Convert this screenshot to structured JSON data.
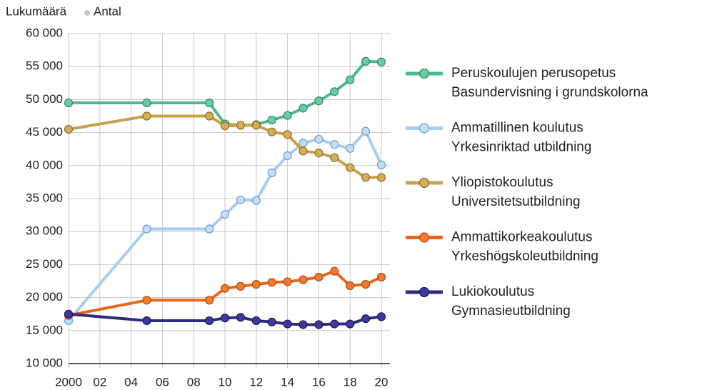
{
  "chart_data": {
    "type": "line",
    "ylabel": "Lukumäärä",
    "ylabel_sv": "Antal",
    "x": [
      2000,
      2005,
      2009,
      2010,
      2011,
      2012,
      2013,
      2014,
      2015,
      2016,
      2017,
      2018,
      2019,
      2020
    ],
    "xlim": [
      2000,
      2020
    ],
    "xticks": [
      2000,
      {
        "value": 2002,
        "label": "02"
      },
      {
        "value": 2004,
        "label": "04"
      },
      {
        "value": 2006,
        "label": "06"
      },
      {
        "value": 2008,
        "label": "08"
      },
      {
        "value": 2010,
        "label": "10"
      },
      {
        "value": 2012,
        "label": "12"
      },
      {
        "value": 2014,
        "label": "14"
      },
      {
        "value": 2016,
        "label": "16"
      },
      {
        "value": 2018,
        "label": "18"
      },
      {
        "value": 2020,
        "label": "20"
      }
    ],
    "ylim": [
      10000,
      60000
    ],
    "yticks": [
      {
        "value": 10000,
        "label": "10 000"
      },
      {
        "value": 15000,
        "label": "15 000"
      },
      {
        "value": 20000,
        "label": "20 000"
      },
      {
        "value": 25000,
        "label": "25 000"
      },
      {
        "value": 30000,
        "label": "30 000"
      },
      {
        "value": 35000,
        "label": "35 000"
      },
      {
        "value": 40000,
        "label": "40 000"
      },
      {
        "value": 45000,
        "label": "45 000"
      },
      {
        "value": 50000,
        "label": "50 000"
      },
      {
        "value": 55000,
        "label": "55 000"
      },
      {
        "value": 60000,
        "label": "60 000"
      }
    ],
    "grid": true,
    "legend": "right",
    "series": [
      {
        "name": "Peruskoulujen perusopetus",
        "name_sv": "Basundervisning i grundskolorna",
        "color": "#4fb88e",
        "marker_fill": "#6ccba3",
        "marker_stroke": "#2e8a66",
        "values": [
          49500,
          49500,
          49500,
          46300,
          46100,
          46200,
          46900,
          47600,
          48700,
          49800,
          51200,
          53000,
          55800,
          55700
        ]
      },
      {
        "name": "Ammatillinen koulutus",
        "name_sv": "Yrkesinriktad utbildning",
        "color": "#a9cdee",
        "marker_fill": "#c4ddf5",
        "marker_stroke": "#6d9fcf",
        "values": [
          16500,
          30400,
          30400,
          32600,
          34800,
          34700,
          38900,
          41500,
          43400,
          44000,
          43200,
          42600,
          45200,
          40100
        ]
      },
      {
        "name": "Yliopistokoulutus",
        "name_sv": "Universitetsutbildning",
        "color": "#c9a04c",
        "marker_fill": "#d4ad5a",
        "marker_stroke": "#8e6e2a",
        "values": [
          45500,
          47500,
          47500,
          46000,
          46100,
          46100,
          45100,
          44700,
          42200,
          41900,
          41200,
          39700,
          38200,
          38200
        ]
      },
      {
        "name": "Ammattikorkeakoulutus",
        "name_sv": "Yrkeshögskoleutbildning",
        "color": "#e8661c",
        "marker_fill": "#f07a30",
        "marker_stroke": "#b04a10",
        "values": [
          17300,
          19600,
          19600,
          21400,
          21700,
          22000,
          22300,
          22400,
          22700,
          23100,
          24000,
          21800,
          22000,
          23100
        ]
      },
      {
        "name": "Lukiokoulutus",
        "name_sv": "Gymnasieutbildning",
        "color": "#2e2a7e",
        "marker_fill": "#3f3a9a",
        "marker_stroke": "#1c1858",
        "values": [
          17500,
          16500,
          16500,
          16900,
          17000,
          16500,
          16300,
          16000,
          15900,
          15900,
          16000,
          16000,
          16800,
          17100
        ]
      }
    ]
  }
}
